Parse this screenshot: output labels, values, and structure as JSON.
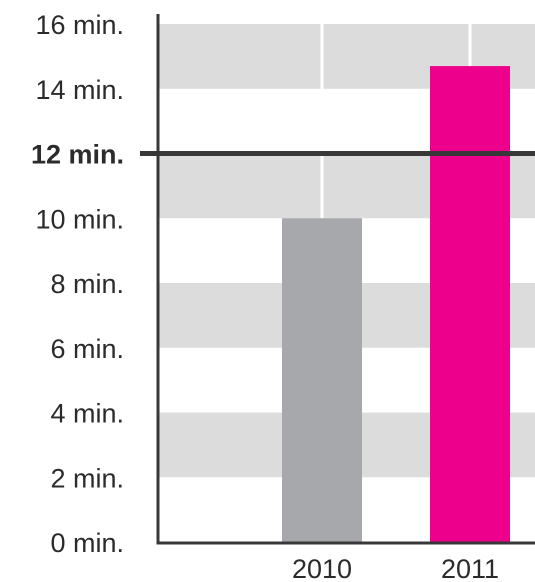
{
  "chart_data": {
    "type": "bar",
    "categories": [
      "2010",
      "2011"
    ],
    "values": [
      10,
      14.7
    ],
    "bar_colors": [
      "#a7a8ab",
      "#ec008c"
    ],
    "ylim": [
      0,
      16
    ],
    "y_ticks": [
      {
        "value": 0,
        "label": "0 min."
      },
      {
        "value": 2,
        "label": "2 min."
      },
      {
        "value": 4,
        "label": "4 min."
      },
      {
        "value": 6,
        "label": "6 min."
      },
      {
        "value": 8,
        "label": "8 min."
      },
      {
        "value": 10,
        "label": "10 min."
      },
      {
        "value": 12,
        "label": "12 min."
      },
      {
        "value": 14,
        "label": "14 min."
      },
      {
        "value": 16,
        "label": "16 min."
      }
    ],
    "reference_line": {
      "value": 12,
      "label": "12 min."
    },
    "band_color": "#dcdcdc",
    "axis_color": "#383838",
    "grid": "alternating horizontal bands"
  }
}
